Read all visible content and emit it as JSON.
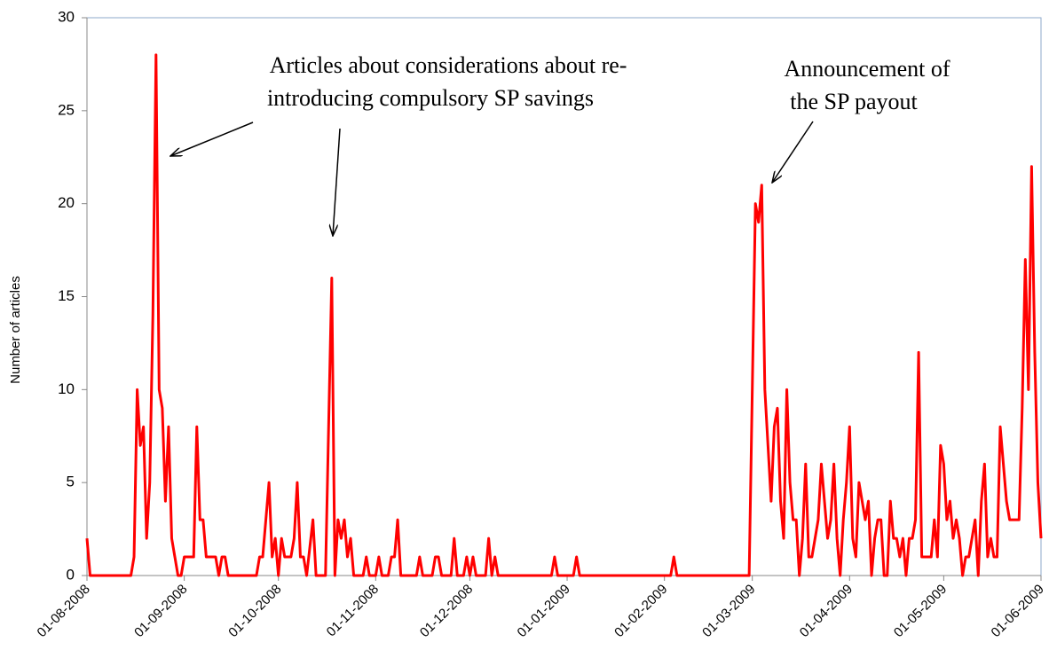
{
  "chart_data": {
    "type": "line",
    "y_label": "Number of articles",
    "annotations": [
      {
        "lines": [
          "Articles about considerations about re-",
          "introducing compulsory SP savings"
        ]
      },
      {
        "lines": [
          "Announcement  of",
          "the SP payout"
        ]
      }
    ],
    "color": "#ff0000",
    "ylim": [
      0,
      30
    ],
    "yticks": [
      0,
      5,
      10,
      15,
      20,
      25,
      30
    ],
    "xlim": [
      "01-08-2008",
      "01-06-2009"
    ],
    "xticks": [
      "01-08-2008",
      "01-09-2008",
      "01-10-2008",
      "01-11-2008",
      "01-12-2008",
      "01-01-2009",
      "01-02-2009",
      "01-03-2009",
      "01-04-2009",
      "01-05-2009",
      "01-06-2009"
    ],
    "x": [
      "01-08-2008",
      "02-08-2008",
      "15-08-2008",
      "16-08-2008",
      "17-08-2008",
      "18-08-2008",
      "19-08-2008",
      "20-08-2008",
      "21-08-2008",
      "22-08-2008",
      "23-08-2008",
      "24-08-2008",
      "25-08-2008",
      "26-08-2008",
      "27-08-2008",
      "28-08-2008",
      "29-08-2008",
      "30-08-2008",
      "31-08-2008",
      "01-09-2008",
      "04-09-2008",
      "05-09-2008",
      "06-09-2008",
      "07-09-2008",
      "08-09-2008",
      "11-09-2008",
      "12-09-2008",
      "13-09-2008",
      "14-09-2008",
      "15-09-2008",
      "24-09-2008",
      "25-09-2008",
      "26-09-2008",
      "28-09-2008",
      "29-09-2008",
      "30-09-2008",
      "01-10-2008",
      "02-10-2008",
      "03-10-2008",
      "05-10-2008",
      "06-10-2008",
      "07-10-2008",
      "08-10-2008",
      "09-10-2008",
      "10-10-2008",
      "12-10-2008",
      "13-10-2008",
      "16-10-2008",
      "18-10-2008",
      "19-10-2008",
      "20-10-2008",
      "21-10-2008",
      "22-10-2008",
      "23-10-2008",
      "24-10-2008",
      "25-10-2008",
      "28-10-2008",
      "29-10-2008",
      "30-10-2008",
      "01-11-2008",
      "02-11-2008",
      "03-11-2008",
      "05-11-2008",
      "06-11-2008",
      "07-11-2008",
      "08-11-2008",
      "09-11-2008",
      "14-11-2008",
      "15-11-2008",
      "16-11-2008",
      "19-11-2008",
      "20-11-2008",
      "21-11-2008",
      "22-11-2008",
      "25-11-2008",
      "26-11-2008",
      "27-11-2008",
      "29-11-2008",
      "30-11-2008",
      "01-12-2008",
      "02-12-2008",
      "03-12-2008",
      "06-12-2008",
      "07-12-2008",
      "08-12-2008",
      "09-12-2008",
      "10-12-2008",
      "27-12-2008",
      "28-12-2008",
      "29-12-2008",
      "03-01-2009",
      "04-01-2009",
      "05-01-2009",
      "03-02-2009",
      "04-02-2009",
      "05-02-2009",
      "28-02-2009",
      "02-03-2009",
      "03-03-2009",
      "04-03-2009",
      "05-03-2009",
      "06-03-2009",
      "07-03-2009",
      "08-03-2009",
      "09-03-2009",
      "10-03-2009",
      "11-03-2009",
      "12-03-2009",
      "13-03-2009",
      "14-03-2009",
      "15-03-2009",
      "16-03-2009",
      "17-03-2009",
      "18-03-2009",
      "19-03-2009",
      "20-03-2009",
      "21-03-2009",
      "22-03-2009",
      "23-03-2009",
      "24-03-2009",
      "25-03-2009",
      "26-03-2009",
      "27-03-2009",
      "28-03-2009",
      "29-03-2009",
      "30-03-2009",
      "31-03-2009",
      "01-04-2009",
      "02-04-2009",
      "03-04-2009",
      "04-04-2009",
      "05-04-2009",
      "06-04-2009",
      "07-04-2009",
      "08-04-2009",
      "09-04-2009",
      "10-04-2009",
      "11-04-2009",
      "12-04-2009",
      "13-04-2009",
      "14-04-2009",
      "15-04-2009",
      "16-04-2009",
      "17-04-2009",
      "18-04-2009",
      "19-04-2009",
      "20-04-2009",
      "21-04-2009",
      "22-04-2009",
      "23-04-2009",
      "24-04-2009",
      "25-04-2009",
      "26-04-2009",
      "27-04-2009",
      "28-04-2009",
      "29-04-2009",
      "30-04-2009",
      "01-05-2009",
      "02-05-2009",
      "03-05-2009",
      "04-05-2009",
      "05-05-2009",
      "06-05-2009",
      "07-05-2009",
      "08-05-2009",
      "09-05-2009",
      "10-05-2009",
      "11-05-2009",
      "12-05-2009",
      "13-05-2009",
      "14-05-2009",
      "15-05-2009",
      "16-05-2009",
      "17-05-2009",
      "18-05-2009",
      "19-05-2009",
      "20-05-2009",
      "21-05-2009",
      "22-05-2009",
      "23-05-2009",
      "24-05-2009",
      "25-05-2009",
      "26-05-2009",
      "27-05-2009",
      "28-05-2009",
      "29-05-2009",
      "30-05-2009",
      "31-05-2009",
      "01-06-2009"
    ],
    "values": [
      2,
      0,
      0,
      1,
      10,
      7,
      8,
      2,
      5,
      14,
      28,
      10,
      9,
      4,
      8,
      2,
      1,
      0,
      0,
      1,
      1,
      8,
      3,
      3,
      1,
      1,
      0,
      1,
      1,
      0,
      0,
      1,
      1,
      5,
      1,
      2,
      0,
      2,
      1,
      1,
      2,
      5,
      1,
      1,
      0,
      3,
      0,
      0,
      16,
      0,
      3,
      2,
      3,
      1,
      2,
      0,
      0,
      1,
      0,
      0,
      1,
      0,
      0,
      1,
      1,
      3,
      0,
      0,
      1,
      0,
      0,
      1,
      1,
      0,
      0,
      2,
      0,
      0,
      1,
      0,
      1,
      0,
      0,
      2,
      0,
      1,
      0,
      0,
      1,
      0,
      0,
      1,
      0,
      0,
      1,
      0,
      0,
      20,
      19,
      21,
      10,
      7,
      4,
      8,
      9,
      4,
      2,
      10,
      5,
      3,
      3,
      0,
      2,
      6,
      1,
      1,
      2,
      3,
      6,
      4,
      2,
      3,
      6,
      2,
      0,
      3,
      5,
      8,
      2,
      1,
      5,
      4,
      3,
      4,
      0,
      2,
      3,
      3,
      0,
      0,
      4,
      2,
      2,
      1,
      2,
      0,
      2,
      2,
      3,
      12,
      1,
      1,
      1,
      1,
      3,
      1,
      7,
      6,
      3,
      4,
      2,
      3,
      2,
      0,
      1,
      1,
      2,
      3,
      0,
      4,
      6,
      1,
      2,
      1,
      1,
      8,
      6,
      4,
      3,
      3,
      3,
      3,
      9,
      17,
      10,
      22,
      12,
      5,
      2
    ]
  }
}
